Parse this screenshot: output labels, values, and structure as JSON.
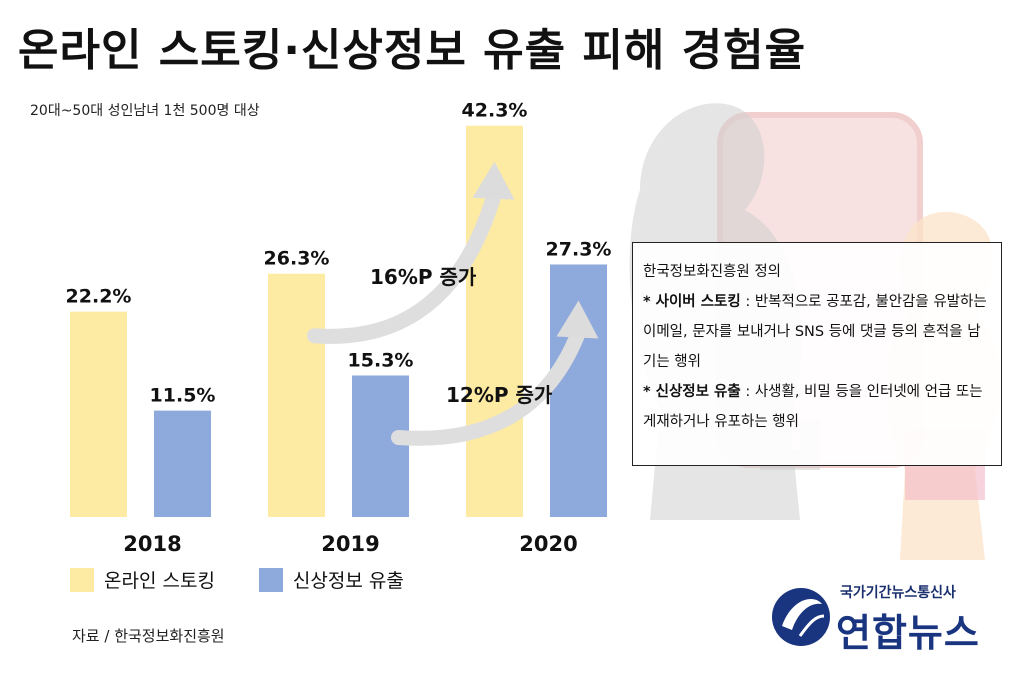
{
  "title": "온라인 스토킹·신상정보 유출 피해 경험율",
  "subtitle": "20대~50대 성인남녀 1천 500명 대상",
  "source": "자료 / 한국정보화진흥원",
  "annotations": {
    "stalking_increase": "16%P 증가",
    "leak_increase": "12%P 증가"
  },
  "colors": {
    "stalking": "#FDEBA3",
    "leak": "#8EA9DB",
    "logo": "#1a3580"
  },
  "definition": {
    "heading": "한국정보화진흥원 정의",
    "items": [
      {
        "term": "* 사이버 스토킹",
        "text": " : 반복적으로 공포감, 불안감을 유발하는 이메일, 문자를 보내거나 SNS 등에 댓글 등의 흔적을 남기는 행위"
      },
      {
        "term": "* 신상정보 유출",
        "text": " : 사생활, 비밀 등을 인터넷에 언급 또는 게재하거나 유포하는 행위"
      }
    ]
  },
  "logo": {
    "top_text": "국가기간뉴스통신사",
    "main_text": "연합뉴스",
    "icon": "yonhap-globe-icon"
  },
  "chart_data": {
    "type": "bar",
    "categories": [
      "2018",
      "2019",
      "2020"
    ],
    "series": [
      {
        "name": "온라인 스토킹",
        "values": [
          22.2,
          26.3,
          42.3
        ],
        "labels": [
          "22.2%",
          "26.3%",
          "42.3%"
        ]
      },
      {
        "name": "신상정보 유출",
        "values": [
          11.5,
          15.3,
          27.3
        ],
        "labels": [
          "11.5%",
          "15.3%",
          "27.3%"
        ]
      }
    ],
    "ylim": [
      0,
      45
    ],
    "grid": false,
    "legend": "bottom-left"
  }
}
